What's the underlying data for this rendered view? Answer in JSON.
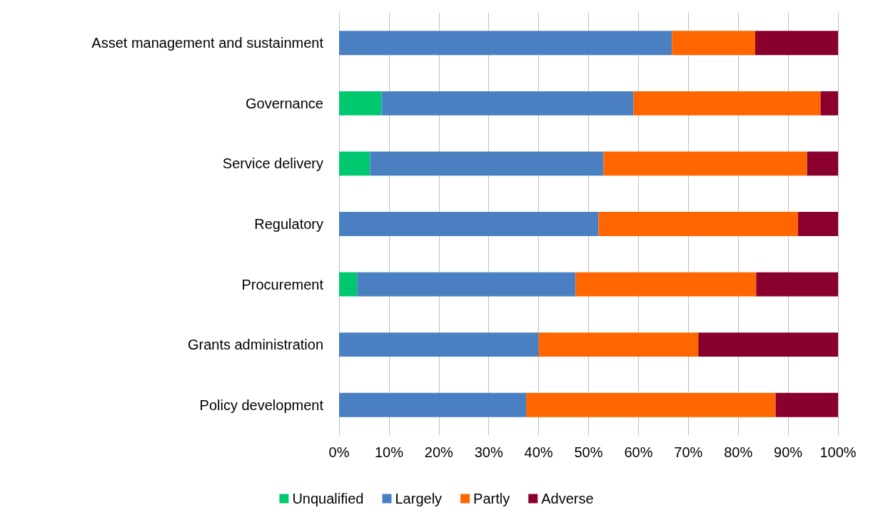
{
  "chart_data": {
    "type": "bar",
    "orientation": "horizontal",
    "stacked": true,
    "categories": [
      "Asset management and sustainment",
      "Governance",
      "Service delivery",
      "Regulatory",
      "Procurement",
      "Grants administration",
      "Policy development"
    ],
    "series": [
      {
        "name": "Unqualified",
        "color": "#00c86e",
        "values": [
          0,
          8.5,
          6.2,
          0,
          3.6,
          0,
          0
        ]
      },
      {
        "name": "Largely",
        "color": "#4a80c2",
        "values": [
          66.7,
          50.5,
          46.8,
          52,
          43.8,
          40,
          37.5
        ]
      },
      {
        "name": "Partly",
        "color": "#ff6600",
        "values": [
          16.7,
          37.5,
          40.8,
          40,
          36.2,
          32,
          50
        ]
      },
      {
        "name": "Adverse",
        "color": "#8a002c",
        "values": [
          16.6,
          3.5,
          6.2,
          8,
          16.4,
          28,
          12.5
        ]
      }
    ],
    "xlim": [
      0,
      100
    ],
    "xticks": [
      {
        "value": 0,
        "label": "0%"
      },
      {
        "value": 10,
        "label": "10%"
      },
      {
        "value": 20,
        "label": "20%"
      },
      {
        "value": 30,
        "label": "30%"
      },
      {
        "value": 40,
        "label": "40%"
      },
      {
        "value": 50,
        "label": "50%"
      },
      {
        "value": 60,
        "label": "60%"
      },
      {
        "value": 70,
        "label": "70%"
      },
      {
        "value": 80,
        "label": "80%"
      },
      {
        "value": 90,
        "label": "90%"
      },
      {
        "value": 100,
        "label": "100%"
      }
    ],
    "grid": "x",
    "legend": "bottom"
  }
}
